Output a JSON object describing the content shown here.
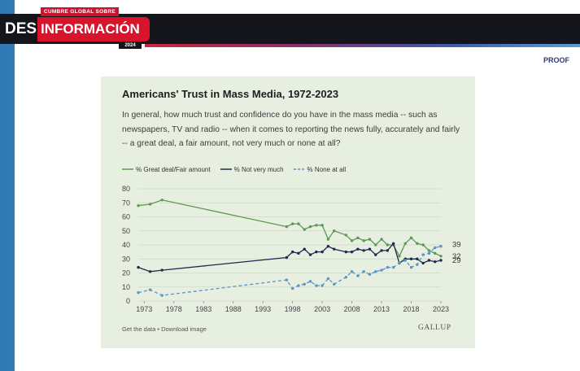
{
  "header": {
    "logo_top": "CUMBRE GLOBAL SOBRE",
    "logo_des": "DES",
    "logo_info": "INFORMACIÓN",
    "logo_year": "2024",
    "proof_label": "PROOF"
  },
  "card": {
    "footer_links": "Get the data • Download image",
    "brand": "GALLUP"
  },
  "colors": {
    "great_deal": "#5c9a52",
    "not_very": "#1f2a4f",
    "none": "#5b93c7"
  },
  "chart_data": {
    "type": "line",
    "title": "Americans' Trust in Mass Media, 1972-2023",
    "subtitle": "In general, how much trust and confidence do you have in the mass media -- such as newspapers, TV and radio -- when it comes to reporting the news fully, accurately and fairly -- a great deal, a fair amount, not very much or none at all?",
    "xlabel": "",
    "ylabel": "",
    "ylim": [
      0,
      80
    ],
    "xlim": [
      1972,
      2023
    ],
    "x_ticks": [
      "1973",
      "1978",
      "1983",
      "1988",
      "1993",
      "1998",
      "2003",
      "2008",
      "2013",
      "2018",
      "2023"
    ],
    "y_ticks": [
      "0",
      "10",
      "20",
      "30",
      "40",
      "50",
      "60",
      "70",
      "80"
    ],
    "grid": true,
    "series": [
      {
        "name": "% Great deal/Fair amount",
        "style": "solid",
        "end_label": "32",
        "x": [
          1972,
          1974,
          1976,
          1997,
          1998,
          1999,
          2000,
          2001,
          2002,
          2003,
          2004,
          2005,
          2007,
          2008,
          2009,
          2010,
          2011,
          2012,
          2013,
          2014,
          2015,
          2016,
          2017,
          2018,
          2019,
          2020,
          2021,
          2022,
          2023
        ],
        "values": [
          68,
          69,
          72,
          53,
          55,
          55,
          51,
          53,
          54,
          54,
          44,
          50,
          47,
          43,
          45,
          43,
          44,
          40,
          44,
          40,
          40,
          32,
          41,
          45,
          41,
          40,
          36,
          34,
          32
        ]
      },
      {
        "name": "% Not very much",
        "style": "solid",
        "end_label": "29",
        "x": [
          1972,
          1974,
          1976,
          1997,
          1998,
          1999,
          2000,
          2001,
          2002,
          2003,
          2004,
          2005,
          2007,
          2008,
          2009,
          2010,
          2011,
          2012,
          2013,
          2014,
          2015,
          2016,
          2017,
          2018,
          2019,
          2020,
          2021,
          2022,
          2023
        ],
        "values": [
          24,
          21,
          22,
          31,
          35,
          34,
          37,
          33,
          35,
          35,
          39,
          37,
          35,
          35,
          37,
          36,
          37,
          33,
          36,
          36,
          41,
          27,
          30,
          30,
          30,
          27,
          29,
          28,
          29
        ]
      },
      {
        "name": "% None at all",
        "style": "dashed",
        "end_label": "39",
        "x": [
          1972,
          1974,
          1976,
          1997,
          1998,
          1999,
          2000,
          2001,
          2002,
          2003,
          2004,
          2005,
          2007,
          2008,
          2009,
          2010,
          2011,
          2012,
          2013,
          2014,
          2015,
          2016,
          2017,
          2018,
          2019,
          2020,
          2021,
          2022,
          2023
        ],
        "values": [
          6,
          8,
          4,
          15,
          9,
          11,
          12,
          14,
          11,
          11,
          16,
          12,
          17,
          21,
          18,
          21,
          19,
          21,
          22,
          24,
          24,
          27,
          29,
          24,
          26,
          33,
          34,
          38,
          39
        ]
      }
    ]
  }
}
